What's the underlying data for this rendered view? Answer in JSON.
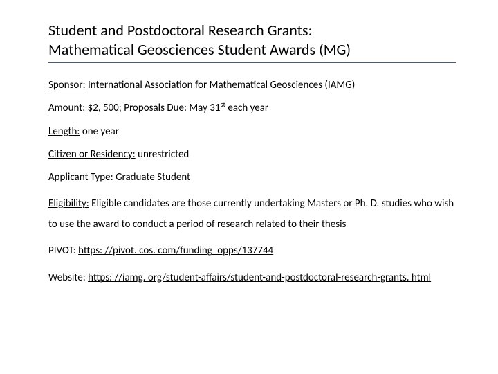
{
  "title": {
    "line1": "Student and Postdoctoral Research Grants:",
    "line2": "Mathematical Geosciences Student Awards (MG)"
  },
  "fields": {
    "sponsor": {
      "label": "Sponsor:",
      "value": "International Association for Mathematical Geosciences (IAMG)"
    },
    "amount": {
      "label": "Amount:",
      "value_pre": "$2, 500; Proposals Due: May 31",
      "sup": "st",
      "value_post": " each year"
    },
    "length": {
      "label": "Length:",
      "value": "one year"
    },
    "residency": {
      "label": "Citizen or Residency:",
      "value": "unrestricted"
    },
    "applicant": {
      "label": "Applicant Type:",
      "value": "Graduate Student"
    },
    "eligibility": {
      "label": "Eligibility:",
      "value": "Eligible candidates are those currently undertaking Masters or Ph. D. studies who wish to use the award to conduct a period of research related to their thesis"
    },
    "pivot": {
      "label": "PIVOT:",
      "url": "https: //pivot. cos. com/funding_opps/137744"
    },
    "website": {
      "label": "Website:",
      "url": "https: //iamg. org/student-affairs/student-and-postdoctoral-research-grants. html"
    }
  },
  "style": {
    "title_fontsize": 22,
    "body_fontsize": 15,
    "rule_color": "#4f5a6b",
    "text_color": "#000000",
    "background": "#ffffff"
  }
}
